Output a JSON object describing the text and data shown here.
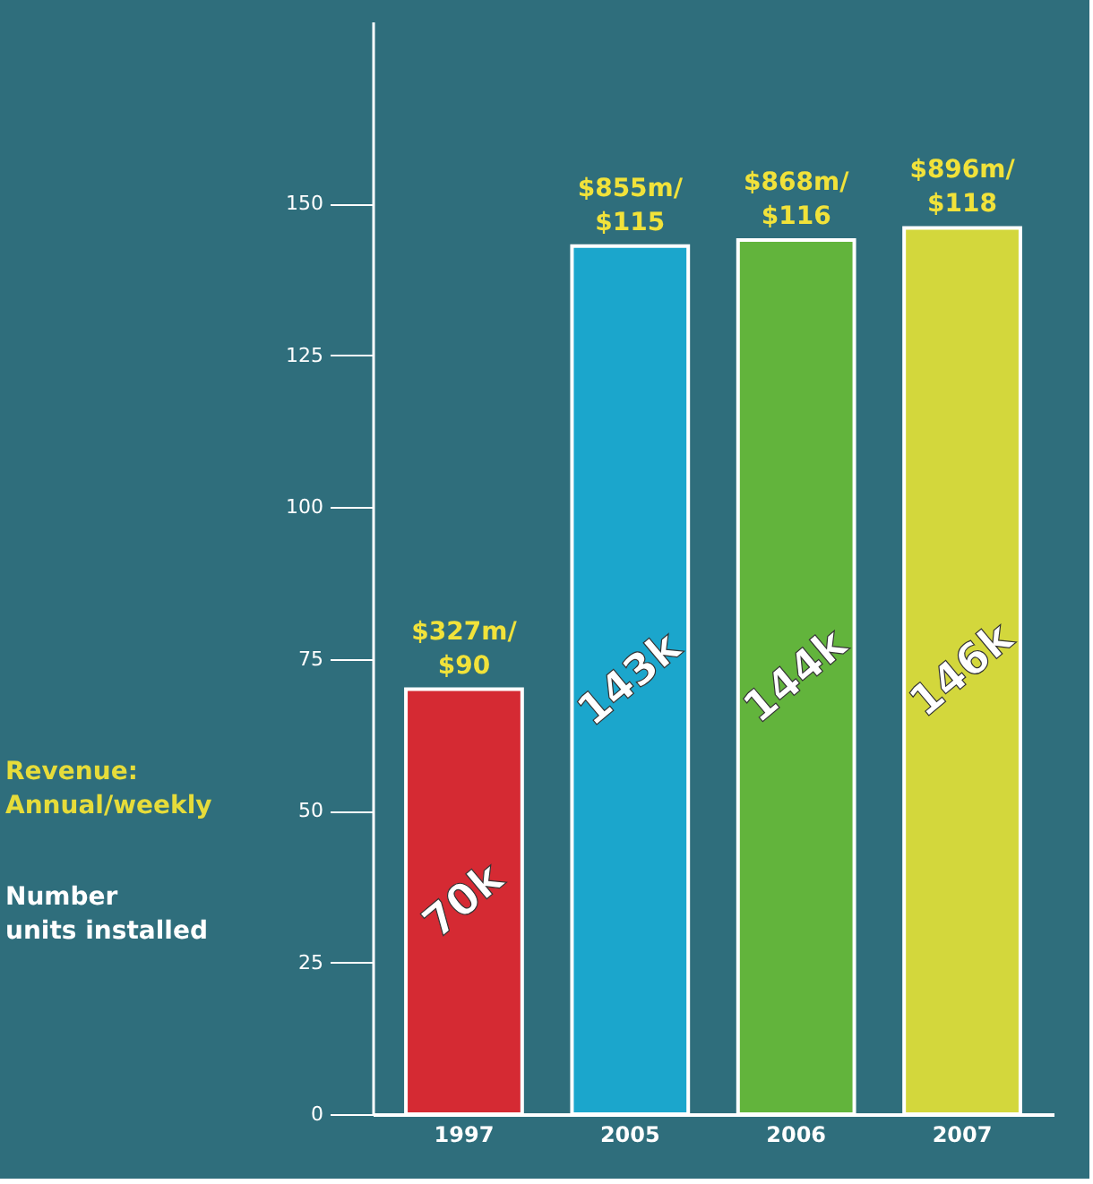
{
  "chart_data": {
    "type": "bar",
    "categories": [
      "1997",
      "2005",
      "2006",
      "2007"
    ],
    "values": [
      70,
      143,
      144,
      146
    ],
    "colors": [
      "#d52a33",
      "#1ba6cc",
      "#62b43c",
      "#d3d73c"
    ],
    "value_labels": [
      "70k",
      "143k",
      "144k",
      "146k"
    ],
    "ylim": [
      0,
      180
    ],
    "yticks": [
      0,
      25,
      50,
      75,
      100,
      125,
      150
    ],
    "grid": false,
    "annotations": [
      {
        "text": "$327m/ $90",
        "x": "1997",
        "y": 70
      },
      {
        "text": "$855m/ $115",
        "x": "2005",
        "y": 143
      },
      {
        "text": "$868m/ $116",
        "x": "2006",
        "y": 144
      },
      {
        "text": "$896m/ $118",
        "x": "2007",
        "y": 146
      },
      "Revenue: Annual/weekly",
      "Number units installed"
    ]
  }
}
